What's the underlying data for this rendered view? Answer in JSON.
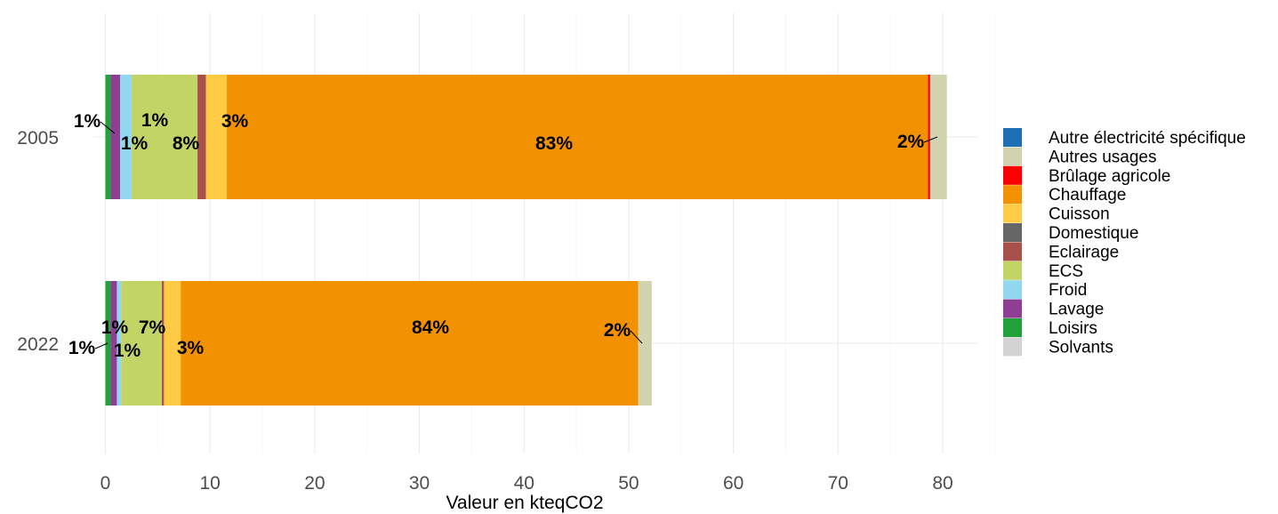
{
  "chart_data": {
    "type": "bar",
    "orientation": "horizontal",
    "stacked": true,
    "xlabel": "Valeur en kteqCO2",
    "ylabel": "",
    "xlim": [
      0,
      85
    ],
    "xticks": [
      "0",
      "10",
      "20",
      "30",
      "40",
      "50",
      "60",
      "70",
      "80"
    ],
    "grid": true,
    "legend_position": "right",
    "legend": [
      {
        "name": "Autre électricité spécifique",
        "color": "#1f6fb4"
      },
      {
        "name": "Autres usages",
        "color": "#d2d4b0"
      },
      {
        "name": "Brûlage agricole",
        "color": "#ff0000"
      },
      {
        "name": "Chauffage",
        "color": "#f39200"
      },
      {
        "name": "Cuisson",
        "color": "#ffcb44"
      },
      {
        "name": "Domestique",
        "color": "#666666"
      },
      {
        "name": "Eclairage",
        "color": "#a8504a"
      },
      {
        "name": "ECS",
        "color": "#c2d465"
      },
      {
        "name": "Froid",
        "color": "#92d7f0"
      },
      {
        "name": "Lavage",
        "color": "#8e3e93"
      },
      {
        "name": "Loisirs",
        "color": "#22a23b"
      },
      {
        "name": "Solvants",
        "color": "#d3d3d3"
      }
    ],
    "bars": [
      {
        "category": "2005",
        "segments": [
          {
            "name": "Loisirs",
            "value": 0.5,
            "label": "1%"
          },
          {
            "name": "Lavage",
            "value": 0.9,
            "label": "1%"
          },
          {
            "name": "Froid",
            "value": 1.1,
            "label": "1%"
          },
          {
            "name": "ECS",
            "value": 6.3,
            "label": "8%"
          },
          {
            "name": "Eclairage",
            "value": 0.8,
            "label": ""
          },
          {
            "name": "Cuisson",
            "value": 2.0,
            "label": "3%"
          },
          {
            "name": "Chauffage",
            "value": 67.0,
            "label": "83%"
          },
          {
            "name": "Brûlage agricole",
            "value": 0.2,
            "label": ""
          },
          {
            "name": "Autres usages",
            "value": 1.6,
            "label": "2%"
          }
        ]
      },
      {
        "category": "2022",
        "segments": [
          {
            "name": "Loisirs",
            "value": 0.5,
            "label": "1%"
          },
          {
            "name": "Lavage",
            "value": 0.6,
            "label": "1%"
          },
          {
            "name": "Froid",
            "value": 0.4,
            "label": "1%"
          },
          {
            "name": "ECS",
            "value": 3.9,
            "label": "7%"
          },
          {
            "name": "Eclairage",
            "value": 0.2,
            "label": ""
          },
          {
            "name": "Cuisson",
            "value": 1.6,
            "label": "3%"
          },
          {
            "name": "Chauffage",
            "value": 43.7,
            "label": "84%"
          },
          {
            "name": "Autres usages",
            "value": 1.3,
            "label": "2%"
          }
        ]
      }
    ]
  }
}
